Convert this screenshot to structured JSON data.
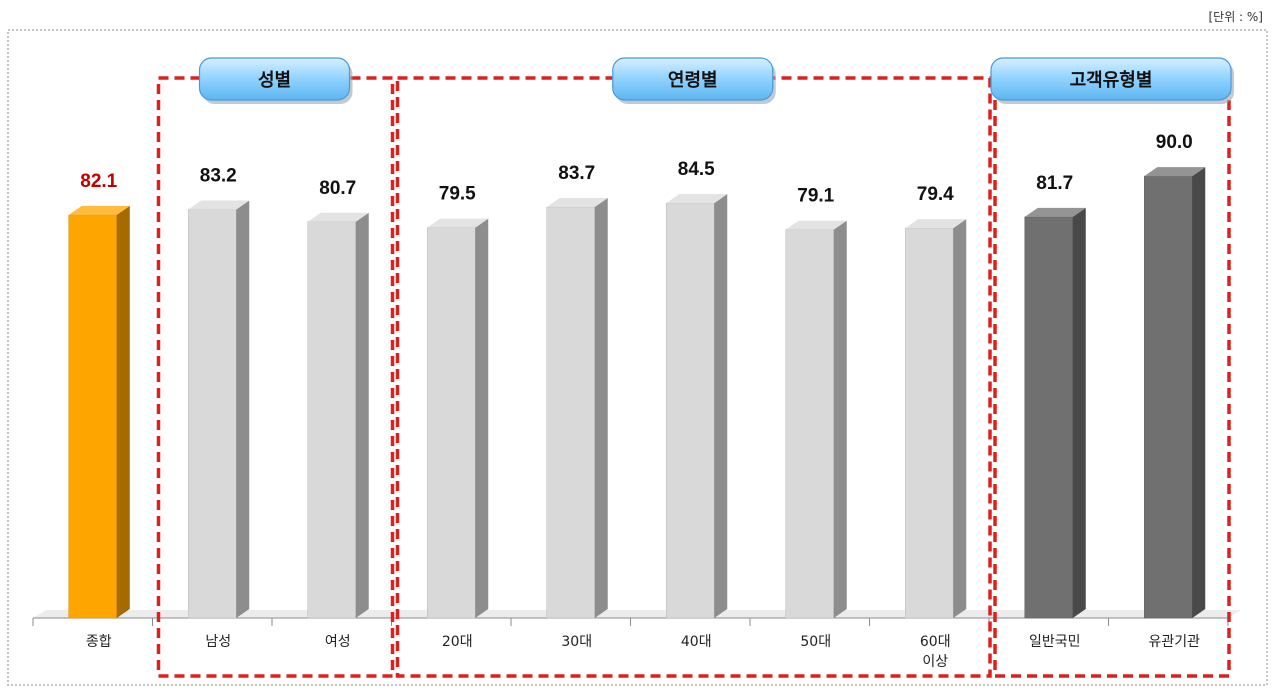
{
  "unit_label": "[단위 : %]",
  "chart_data": {
    "type": "bar",
    "categories": [
      "종합",
      "남성",
      "여성",
      "20대",
      "30대",
      "40대",
      "50대",
      "60대\n이상",
      "일반국민",
      "유관기관"
    ],
    "values": [
      82.1,
      83.2,
      80.7,
      79.5,
      83.7,
      84.5,
      79.1,
      79.4,
      81.7,
      90.0
    ],
    "value_labels": [
      "82.1",
      "83.2",
      "80.7",
      "79.5",
      "83.7",
      "84.5",
      "79.1",
      "79.4",
      "81.7",
      "90.0"
    ],
    "bar_colors": [
      "#FFA500",
      "#D9D9D9",
      "#D9D9D9",
      "#D9D9D9",
      "#D9D9D9",
      "#D9D9D9",
      "#D9D9D9",
      "#D9D9D9",
      "#707070",
      "#707070"
    ],
    "label_colors": [
      "#C00000",
      "#111111",
      "#111111",
      "#111111",
      "#111111",
      "#111111",
      "#111111",
      "#111111",
      "#111111",
      "#111111"
    ],
    "ylim": [
      0,
      100
    ],
    "grid": false,
    "groups": [
      {
        "label": "성별",
        "categories": [
          "남성",
          "여성"
        ]
      },
      {
        "label": "연령별",
        "categories": [
          "20대",
          "30대",
          "40대",
          "50대",
          "60대\n이상"
        ]
      },
      {
        "label": "고객유형별",
        "categories": [
          "일반국민",
          "유관기관"
        ]
      }
    ]
  }
}
